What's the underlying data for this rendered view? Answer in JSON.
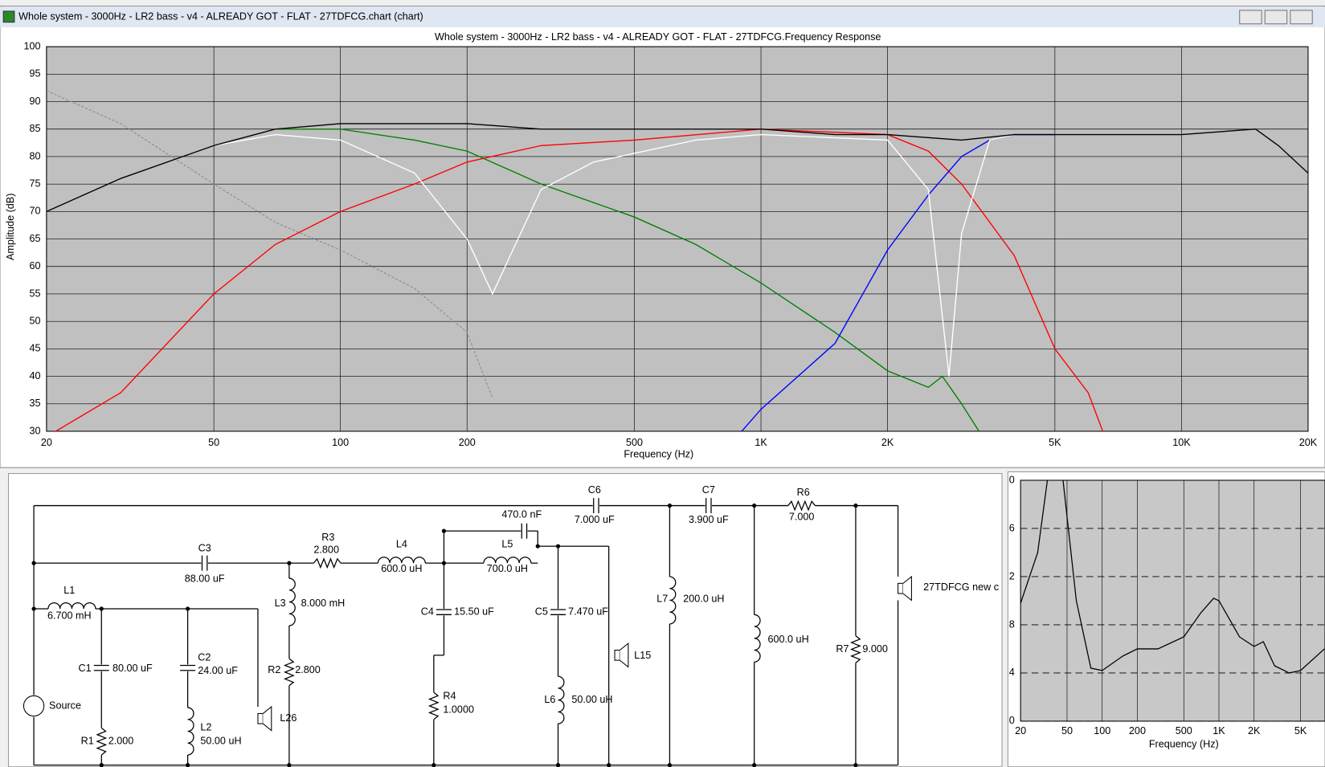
{
  "window": {
    "title": "Whole system - 3000Hz - LR2 bass - v4 - ALREADY GOT - FLAT - 27TDFCG.chart (chart)"
  },
  "chart_data": [
    {
      "type": "line",
      "title": "Whole system - 3000Hz - LR2 bass - v4 - ALREADY GOT - FLAT - 27TDFCG.Frequency Response",
      "x_label": "Frequency (Hz)",
      "y_label": "Amplitude (dB)",
      "xscale": "log",
      "grid": true,
      "xlim": [
        20,
        20000
      ],
      "ylim": [
        30,
        100
      ],
      "xticks": [
        20,
        50,
        100,
        200,
        500,
        {
          "value": 1000,
          "label": "1K"
        },
        {
          "value": 2000,
          "label": "2K"
        },
        {
          "value": 5000,
          "label": "5K"
        },
        {
          "value": 10000,
          "label": "10K"
        },
        {
          "value": 20000,
          "label": "20K"
        }
      ],
      "yticks": [
        30,
        35,
        40,
        45,
        50,
        55,
        60,
        65,
        70,
        75,
        80,
        85,
        90,
        95,
        100
      ],
      "series": [
        {
          "color": "#888888",
          "dashed": true,
          "x": [
            20,
            30,
            50,
            70,
            100,
            150,
            200,
            230
          ],
          "values": [
            92,
            86,
            75,
            68,
            63,
            56,
            48,
            36
          ]
        },
        {
          "color": "#ff0000",
          "x": [
            20,
            30,
            50,
            70,
            100,
            150,
            200,
            300,
            500,
            1000,
            2000,
            2500,
            3000,
            4000,
            5000,
            6000,
            6500
          ],
          "values": [
            29,
            37,
            55,
            64,
            70,
            75,
            79,
            82,
            83,
            85,
            84,
            81,
            75,
            62,
            45,
            37,
            30
          ]
        },
        {
          "color": "#008000",
          "x": [
            50,
            70,
            100,
            150,
            200,
            300,
            500,
            700,
            1000,
            1500,
            2000,
            2500,
            2700,
            3000,
            3300
          ],
          "values": [
            82,
            85,
            85,
            83,
            81,
            75,
            69,
            64,
            57,
            48,
            41,
            38,
            40,
            35,
            30
          ]
        },
        {
          "color": "#0000ff",
          "x": [
            900,
            1000,
            1500,
            2000,
            2500,
            3000,
            3500,
            4000,
            5000
          ],
          "values": [
            30,
            34,
            46,
            63,
            73,
            80,
            83,
            84,
            84
          ]
        },
        {
          "color": "#ffffff",
          "x": [
            50,
            70,
            100,
            150,
            200,
            230,
            250,
            300,
            400,
            700,
            1000,
            2000,
            2500,
            2800,
            3000,
            3500,
            4000
          ],
          "values": [
            82,
            84,
            83,
            77,
            65,
            55,
            61,
            74,
            79,
            83,
            84,
            83,
            74,
            40,
            66,
            83,
            84
          ]
        },
        {
          "color": "#000000",
          "x": [
            20,
            30,
            50,
            70,
            100,
            200,
            300,
            500,
            1000,
            1500,
            2000,
            3000,
            4000,
            5000,
            7000,
            10000,
            15000,
            17000,
            20000
          ],
          "values": [
            70,
            76,
            82,
            85,
            86,
            86,
            85,
            85,
            85,
            84,
            84,
            83,
            84,
            84,
            84,
            84,
            85,
            82,
            77
          ]
        }
      ]
    },
    {
      "type": "line",
      "x_label": "Frequency (Hz)",
      "xscale": "log",
      "grid": true,
      "xlim": [
        20,
        8100
      ],
      "ylim": [
        0,
        10
      ],
      "xticks": [
        20,
        50,
        100,
        200,
        500,
        {
          "value": 1000,
          "label": "1K"
        },
        {
          "value": 2000,
          "label": "2K"
        },
        {
          "value": 5000,
          "label": "5K"
        }
      ],
      "yticks": [
        {
          "value": 10,
          "label": "0"
        },
        {
          "value": 8,
          "label": "6"
        },
        {
          "value": 6,
          "label": "2"
        },
        {
          "value": 4,
          "label": "8"
        },
        {
          "value": 2,
          "label": "4"
        },
        0
      ],
      "series": [
        {
          "color": "#000000",
          "x": [
            20,
            28,
            35,
            45,
            60,
            80,
            100,
            150,
            200,
            300,
            500,
            700,
            900,
            1000,
            1500,
            2000,
            2400,
            3000,
            4000,
            5000,
            8000
          ],
          "values": [
            4.9,
            7,
            10.5,
            10.5,
            5,
            2.2,
            2.1,
            2.7,
            3,
            3,
            3.5,
            4.5,
            5.1,
            5,
            3.5,
            3.1,
            3.3,
            2.3,
            2,
            2.1,
            3
          ]
        }
      ]
    }
  ],
  "schematic": {
    "components": [
      {
        "name": "C6",
        "value": "7.000 uF"
      },
      {
        "name": "C7",
        "value": "3.900 uF"
      },
      {
        "name": "R6",
        "value": "7.000"
      },
      {
        "name": "C3",
        "value": "88.00 uF"
      },
      {
        "name": "R3",
        "value": "2.800"
      },
      {
        "name": "L4",
        "value": "600.0 uH"
      },
      {
        "value": "470.0 nF"
      },
      {
        "name": "L5",
        "value": "700.0 uH"
      },
      {
        "name": "L1",
        "value": "6.700 mH"
      },
      {
        "name": "C1",
        "value": "80.00 uF"
      },
      {
        "name": "C2",
        "value": "24.00 uF"
      },
      {
        "name": "L3",
        "value": "8.000 mH"
      },
      {
        "name": "R2",
        "value": "2.800"
      },
      {
        "name": "C4",
        "value": "15.50 uF"
      },
      {
        "name": "C5",
        "value": "7.470 uF"
      },
      {
        "name": "L15"
      },
      {
        "name": "L7",
        "value": "200.0 uH"
      },
      {
        "value": "600.0 uH"
      },
      {
        "name": "R7",
        "value": "9.000"
      },
      {
        "name": "27TDFCG new c"
      },
      {
        "name": "Source"
      },
      {
        "name": "R4",
        "value": "1.0000"
      },
      {
        "name": "L6",
        "value": "50.00 uH"
      },
      {
        "name": "R1",
        "value": "2.000"
      },
      {
        "name": "L2",
        "value": "50.00 uH"
      },
      {
        "name": "L26"
      }
    ]
  }
}
